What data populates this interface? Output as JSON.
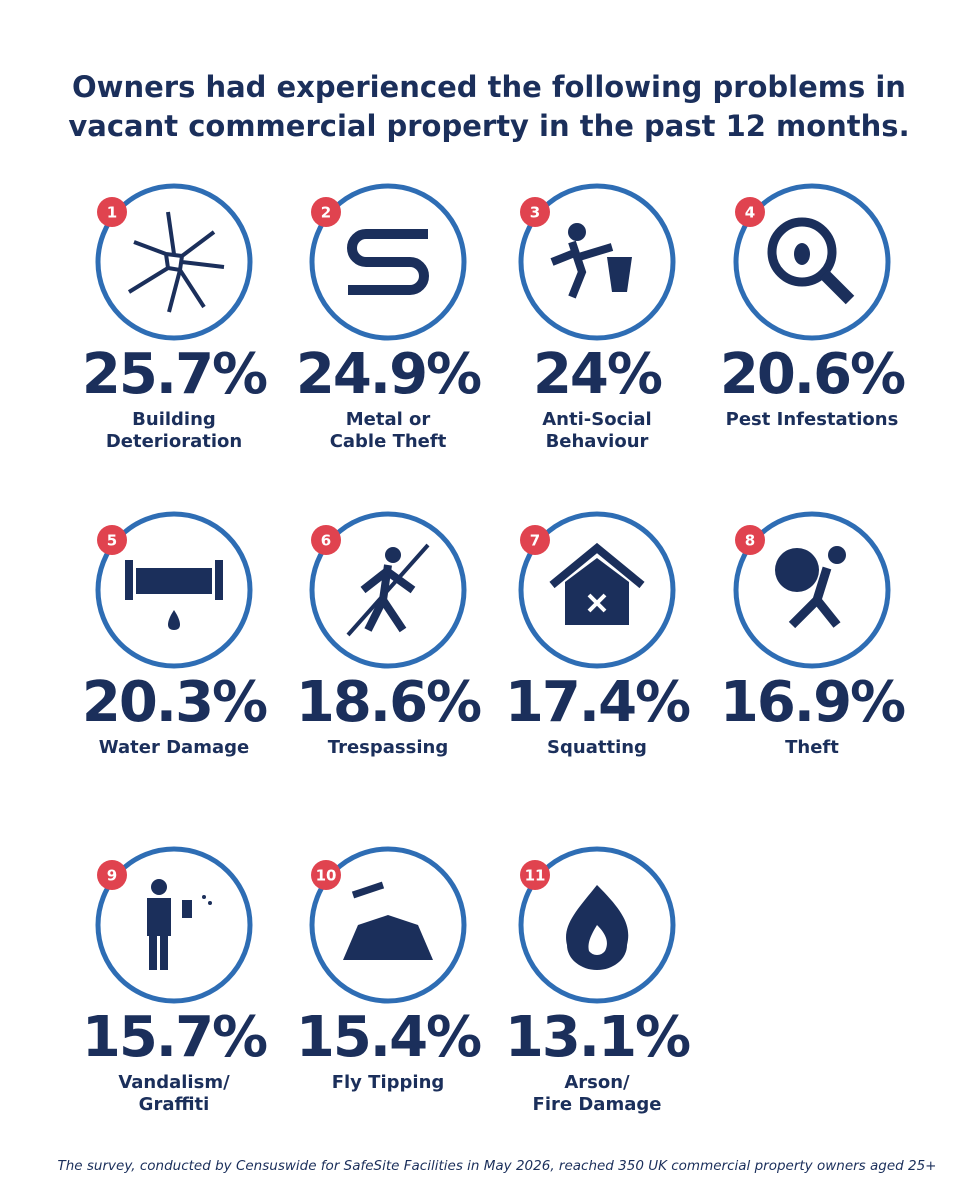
{
  "title": [
    "Owners had experienced the following problems in",
    "vacant commercial property in the past 12 months."
  ],
  "items": [
    {
      "rank": "1",
      "value": "25.7%",
      "label": [
        "Building",
        "Deterioration"
      ]
    },
    {
      "rank": "2",
      "value": "24.9%",
      "label": [
        "Metal or",
        "Cable Theft"
      ]
    },
    {
      "rank": "3",
      "value": "24%",
      "label": [
        "Anti-Social",
        "Behaviour"
      ]
    },
    {
      "rank": "4",
      "value": "20.6%",
      "label": [
        "Pest Infestations"
      ]
    },
    {
      "rank": "5",
      "value": "20.3%",
      "label": [
        "Water Damage"
      ]
    },
    {
      "rank": "6",
      "value": "18.6%",
      "label": [
        "Trespassing"
      ]
    },
    {
      "rank": "7",
      "value": "17.4%",
      "label": [
        "Squatting"
      ]
    },
    {
      "rank": "8",
      "value": "16.9%",
      "label": [
        "Theft"
      ]
    },
    {
      "rank": "9",
      "value": "15.7%",
      "label": [
        "Vandalism/",
        "Graffiti"
      ]
    },
    {
      "rank": "10",
      "value": "15.4%",
      "label": [
        "Fly Tipping"
      ]
    },
    {
      "rank": "11",
      "value": "13.1%",
      "label": [
        "Arson/",
        "Fire Damage"
      ]
    }
  ],
  "footnote": "The survey, conducted by Censuswide for SafeSite Facilities in May 2026, reached 350 UK commercial property owners aged 25+"
}
